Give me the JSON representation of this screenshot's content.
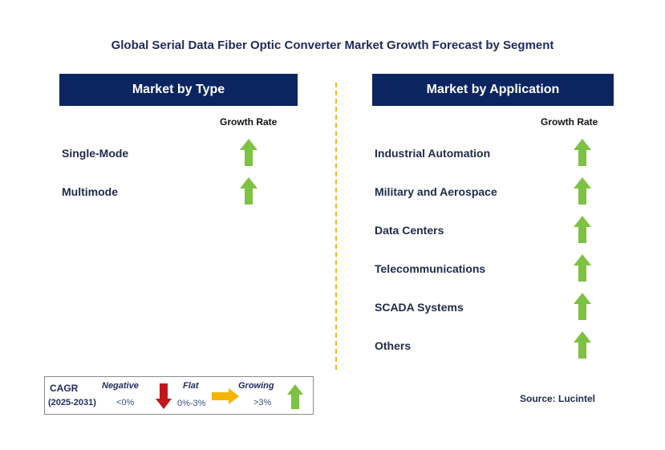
{
  "title": "Global Serial Data Fiber Optic Converter Market Growth Forecast by Segment",
  "left_panel": {
    "header": "Market by Type",
    "column_header": "Growth Rate",
    "items": [
      {
        "label": "Single-Mode",
        "trend": "growing"
      },
      {
        "label": "Multimode",
        "trend": "growing"
      }
    ]
  },
  "right_panel": {
    "header": "Market by Application",
    "column_header": "Growth Rate",
    "items": [
      {
        "label": "Industrial Automation",
        "trend": "growing"
      },
      {
        "label": "Military and Aerospace",
        "trend": "growing"
      },
      {
        "label": "Data Centers",
        "trend": "growing"
      },
      {
        "label": "Telecommunications",
        "trend": "growing"
      },
      {
        "label": "SCADA Systems",
        "trend": "growing"
      },
      {
        "label": "Others",
        "trend": "growing"
      }
    ]
  },
  "legend": {
    "cagr_label": "CAGR",
    "period": "(2025-2031)",
    "negative_label": "Negative",
    "negative_range": "<0%",
    "flat_label": "Flat",
    "flat_range": "0%-3%",
    "growing_label": "Growing",
    "growing_range": ">3%"
  },
  "source": "Source: Lucintel",
  "colors": {
    "header_bg": "#0b2560",
    "growing_arrow": "#7dc242",
    "negative_arrow": "#c0171c",
    "flat_arrow": "#f5b400",
    "divider": "#f0b323"
  }
}
